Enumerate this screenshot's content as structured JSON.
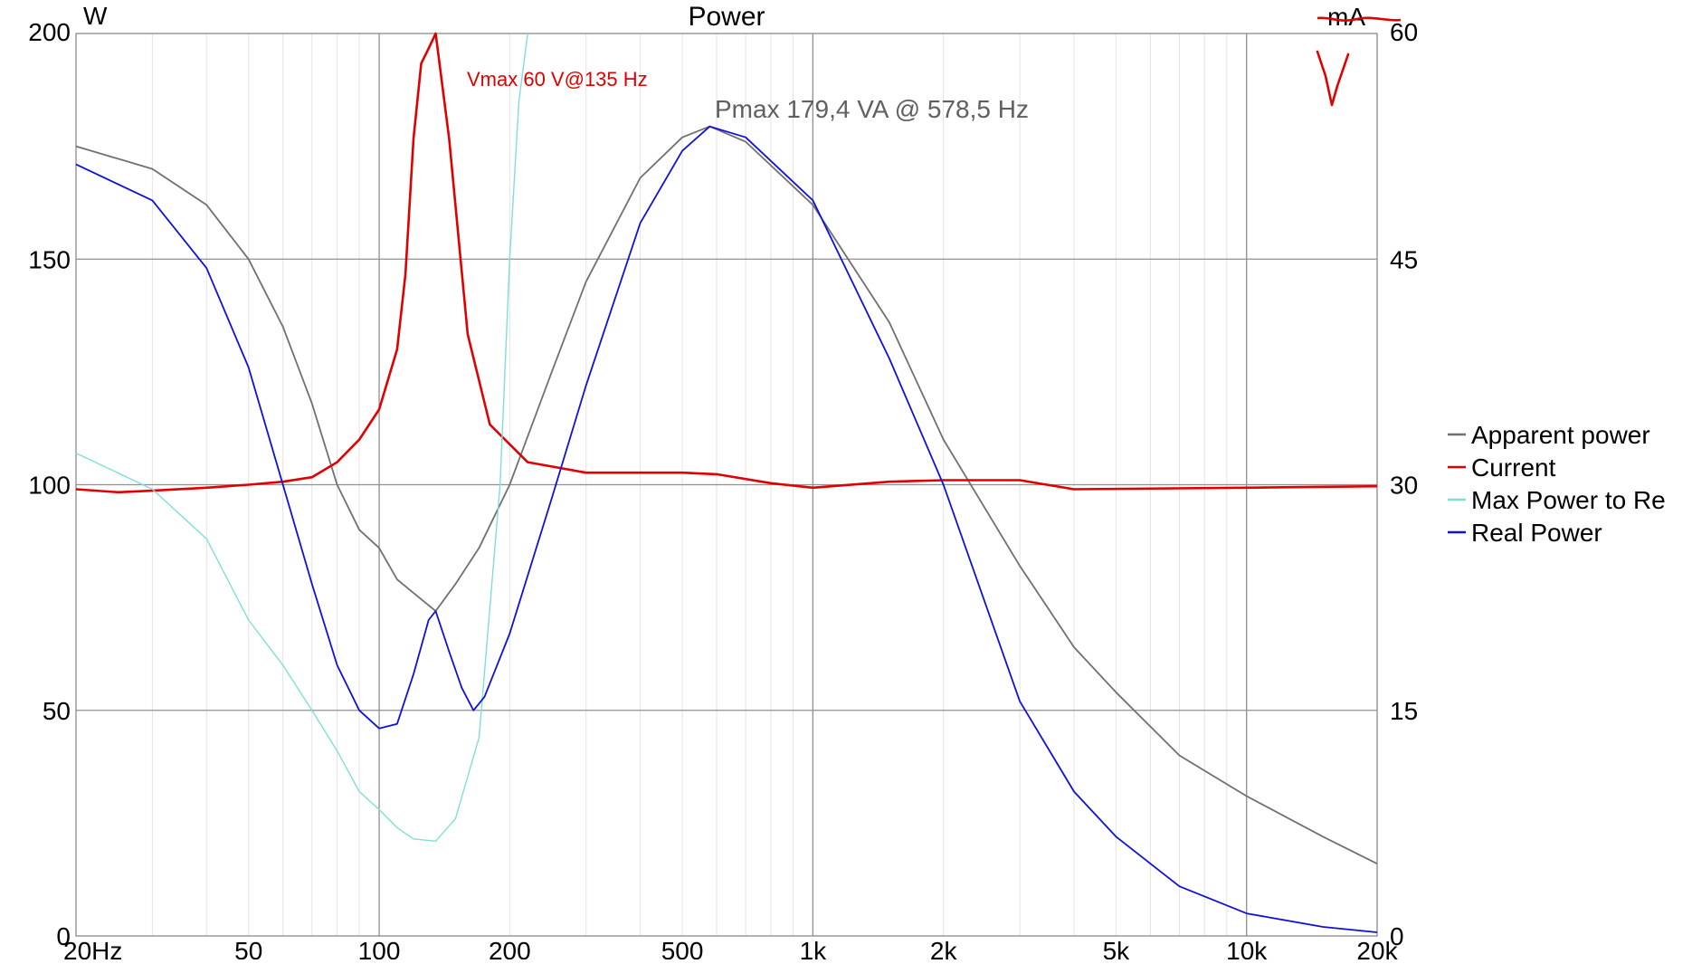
{
  "chart_data": {
    "type": "line",
    "title": "Power",
    "y_left_unit": "W",
    "y_right_unit": "mA",
    "y_right_unit_replacement": "V",
    "x_scale": "log",
    "x_range": [
      20,
      20000
    ],
    "y_left_range": [
      0,
      200
    ],
    "y_right_range": [
      0,
      60
    ],
    "grid": true,
    "legend_position": "right",
    "x_ticks": [
      {
        "value": 20,
        "label": "20Hz"
      },
      {
        "value": 50,
        "label": "50"
      },
      {
        "value": 100,
        "label": "100"
      },
      {
        "value": 200,
        "label": "200"
      },
      {
        "value": 500,
        "label": "500"
      },
      {
        "value": 1000,
        "label": "1k"
      },
      {
        "value": 2000,
        "label": "2k"
      },
      {
        "value": 5000,
        "label": "5k"
      },
      {
        "value": 10000,
        "label": "10k"
      },
      {
        "value": 20000,
        "label": "20k"
      }
    ],
    "y_left_ticks": [
      0,
      50,
      100,
      150,
      200
    ],
    "y_right_ticks": [
      0,
      15,
      30,
      45,
      60
    ],
    "series": [
      {
        "name": "Apparent power",
        "color": "#707070",
        "axis": "left",
        "points": [
          [
            20,
            175
          ],
          [
            30,
            170
          ],
          [
            40,
            162
          ],
          [
            50,
            150
          ],
          [
            60,
            135
          ],
          [
            70,
            118
          ],
          [
            80,
            100
          ],
          [
            90,
            90
          ],
          [
            100,
            86
          ],
          [
            110,
            79
          ],
          [
            120,
            76
          ],
          [
            135,
            72
          ],
          [
            150,
            78
          ],
          [
            170,
            86
          ],
          [
            200,
            100
          ],
          [
            250,
            125
          ],
          [
            300,
            145
          ],
          [
            400,
            168
          ],
          [
            500,
            177
          ],
          [
            578.5,
            179.4
          ],
          [
            700,
            176
          ],
          [
            1000,
            162
          ],
          [
            1500,
            136
          ],
          [
            2000,
            110
          ],
          [
            3000,
            82
          ],
          [
            4000,
            64
          ],
          [
            5000,
            54
          ],
          [
            7000,
            40
          ],
          [
            10000,
            31
          ],
          [
            15000,
            22
          ],
          [
            20000,
            16
          ]
        ]
      },
      {
        "name": "Current",
        "color": "#e00000",
        "axis": "right",
        "points": [
          [
            20,
            29.7
          ],
          [
            25,
            29.5
          ],
          [
            30,
            29.6
          ],
          [
            40,
            29.8
          ],
          [
            50,
            30
          ],
          [
            60,
            30.2
          ],
          [
            70,
            30.5
          ],
          [
            80,
            31.5
          ],
          [
            90,
            33
          ],
          [
            100,
            35
          ],
          [
            110,
            39
          ],
          [
            115,
            44
          ],
          [
            120,
            53
          ],
          [
            125,
            58
          ],
          [
            130,
            59
          ],
          [
            135,
            60
          ],
          [
            145,
            53
          ],
          [
            160,
            40
          ],
          [
            180,
            34
          ],
          [
            220,
            31.5
          ],
          [
            300,
            30.8
          ],
          [
            500,
            30.8
          ],
          [
            600,
            30.7
          ],
          [
            800,
            30.1
          ],
          [
            1000,
            29.8
          ],
          [
            1500,
            30.2
          ],
          [
            2000,
            30.3
          ],
          [
            3000,
            30.3
          ],
          [
            4000,
            29.7
          ],
          [
            10000,
            29.8
          ],
          [
            20000,
            29.9
          ]
        ]
      },
      {
        "name": "Max Power to Re",
        "color": "#7fdfd8",
        "axis": "left",
        "points": [
          [
            20,
            107
          ],
          [
            30,
            99
          ],
          [
            40,
            88
          ],
          [
            50,
            70
          ],
          [
            60,
            60
          ],
          [
            70,
            50
          ],
          [
            80,
            41
          ],
          [
            90,
            32
          ],
          [
            100,
            28
          ],
          [
            110,
            24
          ],
          [
            120,
            21.5
          ],
          [
            135,
            21
          ],
          [
            150,
            26
          ],
          [
            170,
            44
          ],
          [
            190,
            100
          ],
          [
            200,
            150
          ],
          [
            210,
            185
          ],
          [
            220,
            200
          ]
        ]
      },
      {
        "name": "Real Power",
        "color": "#1010dd",
        "axis": "left",
        "points": [
          [
            20,
            171
          ],
          [
            30,
            163
          ],
          [
            40,
            148
          ],
          [
            50,
            126
          ],
          [
            60,
            100
          ],
          [
            70,
            78
          ],
          [
            80,
            60
          ],
          [
            90,
            50
          ],
          [
            100,
            46
          ],
          [
            110,
            47
          ],
          [
            120,
            58
          ],
          [
            130,
            70
          ],
          [
            135,
            72
          ],
          [
            145,
            63
          ],
          [
            155,
            55
          ],
          [
            165,
            50
          ],
          [
            175,
            53
          ],
          [
            200,
            67
          ],
          [
            250,
            97
          ],
          [
            300,
            122
          ],
          [
            400,
            158
          ],
          [
            500,
            174
          ],
          [
            578.5,
            179.4
          ],
          [
            700,
            177
          ],
          [
            1000,
            163
          ],
          [
            1500,
            128
          ],
          [
            2000,
            100
          ],
          [
            3000,
            52
          ],
          [
            4000,
            32
          ],
          [
            5000,
            22
          ],
          [
            7000,
            11
          ],
          [
            10000,
            5
          ],
          [
            15000,
            2
          ],
          [
            20000,
            0.8
          ]
        ]
      }
    ],
    "annotations": [
      {
        "text": "Vmax 60 V@135 Hz",
        "color": "#e00000"
      },
      {
        "text": "Pmax 179,4 VA  @ 578,5 Hz",
        "color": "#606060"
      }
    ]
  }
}
